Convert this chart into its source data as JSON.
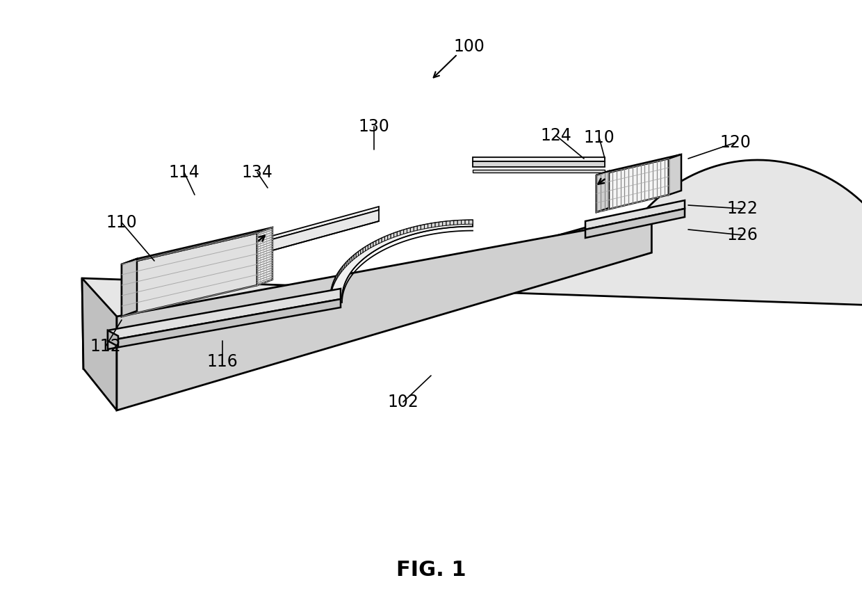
{
  "bg_color": "#ffffff",
  "lc": "#000000",
  "face_top": "#e8e8e8",
  "face_front": "#c8c8c8",
  "face_side": "#b8b8b8",
  "face_light": "#f0f0f0",
  "grating": "#999999",
  "lw_main": 1.8,
  "lw_thick": 2.0,
  "fs": 17,
  "fs_caption": 22,
  "fig_label": "FIG. 1"
}
